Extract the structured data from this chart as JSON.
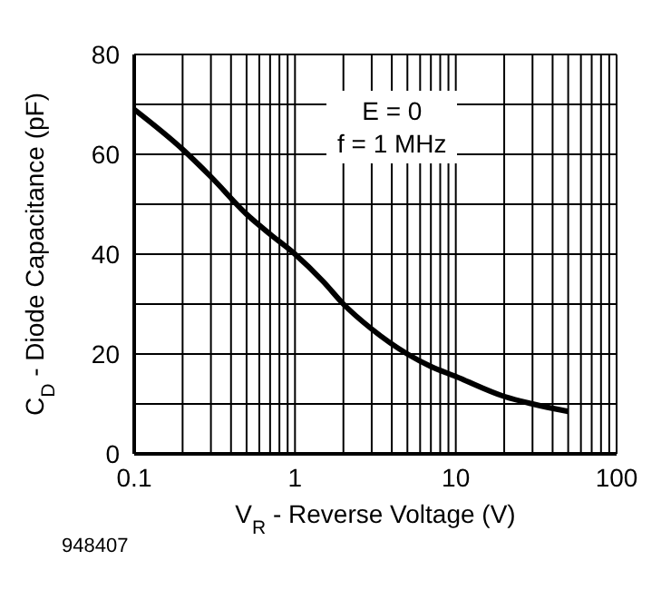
{
  "chart_data": {
    "type": "line",
    "xlabel": "V$_{R}$ - Reverse Voltage (V)",
    "ylabel": "C$_{D}$ - Diode Capacitance (pF)",
    "annotations": [
      "E = 0",
      "f = 1 MHz",
      "948407"
    ],
    "log": "x",
    "grid": true,
    "marker": "none",
    "line_style": "solid",
    "legend": false,
    "x": [
      0.1,
      0.2,
      0.3,
      0.5,
      0.7,
      1,
      1.5,
      2,
      3,
      5,
      7,
      10,
      20,
      30,
      50
    ],
    "series": [
      {
        "color": "#000000",
        "values": [
          69,
          61,
          55.5,
          48,
          44,
          40,
          34.5,
          30,
          25,
          20,
          17.5,
          15.5,
          11.5,
          10,
          8.5
        ]
      }
    ],
    "xlim": [
      0.1,
      100
    ],
    "xticks": [
      0.1,
      {
        "value": 0.2,
        "label": null
      },
      {
        "value": 0.3,
        "label": null
      },
      {
        "value": 0.4,
        "label": null
      },
      {
        "value": 0.5,
        "label": null
      },
      {
        "value": 0.6,
        "label": null
      },
      {
        "value": 0.7,
        "label": null
      },
      {
        "value": 0.8,
        "label": null
      },
      {
        "value": 0.9,
        "label": null
      },
      1,
      {
        "value": 2,
        "label": null
      },
      {
        "value": 3,
        "label": null
      },
      {
        "value": 4,
        "label": null
      },
      {
        "value": 5,
        "label": null
      },
      {
        "value": 6,
        "label": null
      },
      {
        "value": 7,
        "label": null
      },
      {
        "value": 8,
        "label": null
      },
      {
        "value": 9,
        "label": null
      },
      10,
      {
        "value": 20,
        "label": null
      },
      {
        "value": 30,
        "label": null
      },
      {
        "value": 40,
        "label": null
      },
      {
        "value": 50,
        "label": null
      },
      {
        "value": 60,
        "label": null
      },
      {
        "value": 70,
        "label": null
      },
      {
        "value": 80,
        "label": null
      },
      {
        "value": 90,
        "label": null
      },
      100
    ],
    "ylim": [
      0,
      80
    ],
    "yticks": [
      0,
      {
        "value": 10,
        "label": null
      },
      20,
      {
        "value": 30,
        "label": null
      },
      40,
      {
        "value": 50,
        "label": null
      },
      60,
      {
        "value": 70,
        "label": null
      },
      80
    ]
  }
}
